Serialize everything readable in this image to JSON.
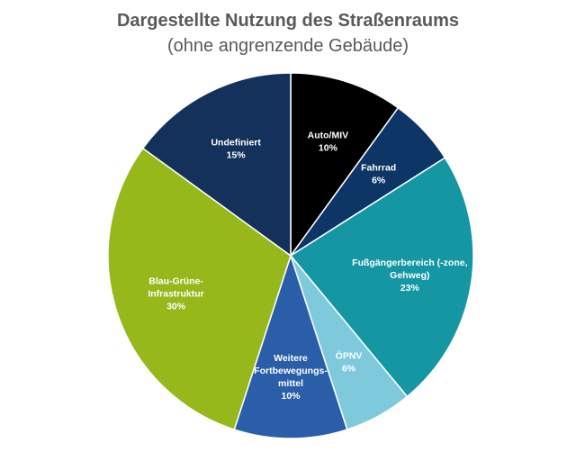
{
  "chart_data": {
    "type": "pie",
    "title": "Dargestellte Nutzung des Straßenraums",
    "subtitle": "(ohne angrenzende Gebäude)",
    "slices": [
      {
        "label_lines": [
          "Auto/MIV"
        ],
        "value": 10,
        "value_label": "10%",
        "color": "#000000",
        "text_color": "#ffffff"
      },
      {
        "label_lines": [
          "Fahrrad"
        ],
        "value": 6,
        "value_label": "6%",
        "color": "#0d3566",
        "text_color": "#ffffff"
      },
      {
        "label_lines": [
          "Fußgängerbereich (-zone,",
          "Gehweg)"
        ],
        "value": 23,
        "value_label": "23%",
        "color": "#1496a3",
        "text_color": "#ffffff"
      },
      {
        "label_lines": [
          "ÖPNV"
        ],
        "value": 6,
        "value_label": "6%",
        "color": "#7ec9db",
        "text_color": "#ffffff"
      },
      {
        "label_lines": [
          "Weitere",
          "Fortbewegungs-",
          "mittel"
        ],
        "value": 10,
        "value_label": "10%",
        "color": "#2a5ea8",
        "text_color": "#ffffff"
      },
      {
        "label_lines": [
          "Blau-Grüne-",
          "Infrastruktur"
        ],
        "value": 30,
        "value_label": "30%",
        "color": "#97b81a",
        "text_color": "#ffffff"
      },
      {
        "label_lines": [
          "Undefiniert"
        ],
        "value": 15,
        "value_label": "15%",
        "color": "#13315a",
        "text_color": "#ffffff"
      }
    ],
    "legend": "none"
  }
}
